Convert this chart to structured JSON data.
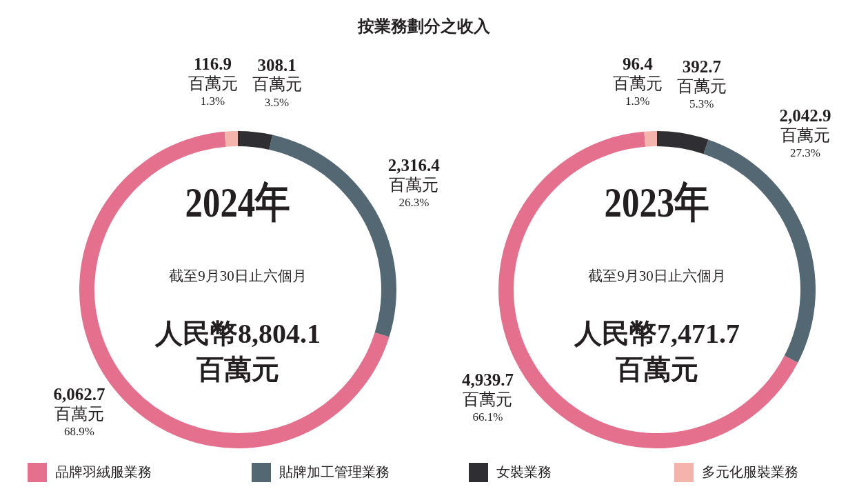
{
  "chart_data": [
    {
      "type": "donut",
      "title": "按業務劃分之收入",
      "categories": [
        "品牌羽絨服業務",
        "貼牌加工管理業務",
        "女裝業務",
        "多元化服裝業務"
      ],
      "values": [
        6062.7,
        2316.4,
        308.1,
        116.9
      ],
      "colors": [
        "#e5708e",
        "#546873",
        "#2f2e33",
        "#f4b3ab"
      ],
      "value_labels": [
        "6,062.7\n百萬元\n68.9%",
        "2,316.4\n百萬元\n26.3%",
        "308.1\n百萬元\n3.5%",
        "116.9\n百萬元\n1.3%"
      ],
      "annotations": [
        "2024年",
        "截至9月30日止六個月",
        "人民幣8,804.1\n百萬元"
      ],
      "legend": "bottom"
    },
    {
      "type": "donut",
      "categories": [
        null,
        null,
        null,
        null
      ],
      "values": [
        4939.7,
        2042.9,
        392.7,
        96.4
      ],
      "colors": [
        "#e5708e",
        "#546873",
        "#2f2e33",
        "#f4b3ab"
      ],
      "value_labels": [
        "4,939.7\n百萬元\n66.1%",
        "2,042.9\n百萬元\n27.3%",
        "392.7\n百萬元\n5.3%",
        "96.4\n百萬元\n1.3%"
      ],
      "annotations": [
        "2023年",
        "截至9月30日止六個月",
        "人民幣7,471.7\n百萬元"
      ]
    }
  ]
}
